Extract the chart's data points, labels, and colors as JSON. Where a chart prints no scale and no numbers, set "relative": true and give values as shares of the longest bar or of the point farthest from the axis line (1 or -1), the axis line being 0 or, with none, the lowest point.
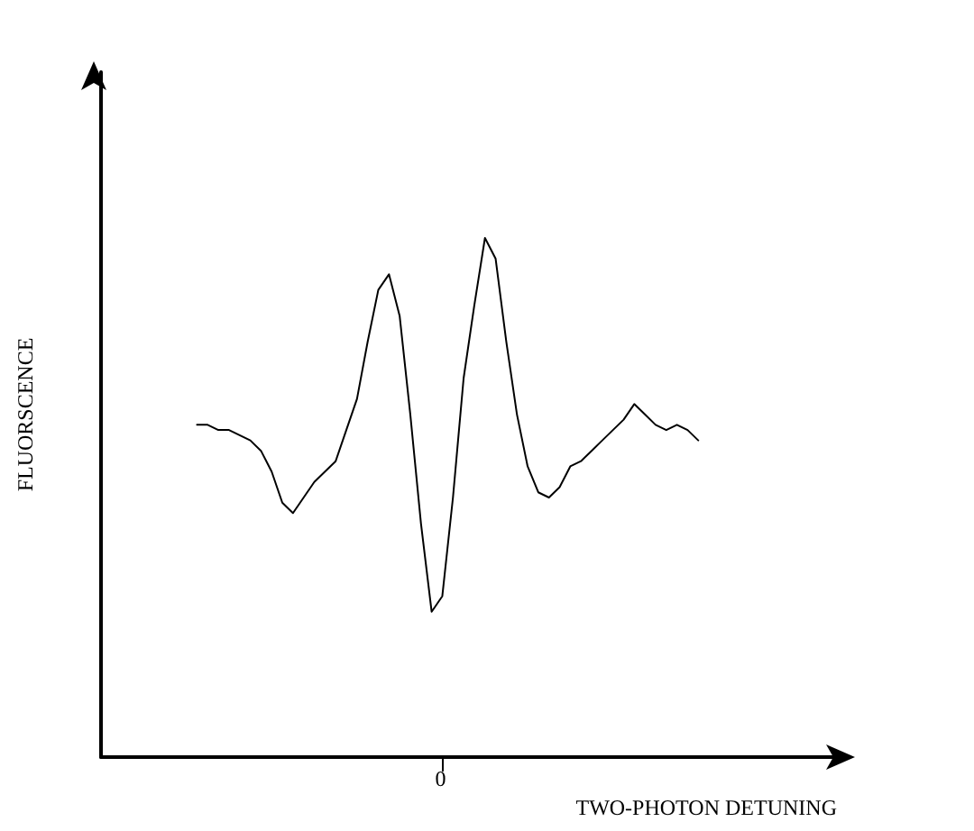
{
  "chart_data": {
    "type": "line",
    "relative": true,
    "xlabel": "TWO-PHOTON DETUNING",
    "ylabel": "FLUORSCENCE",
    "marker": "none",
    "line_style": "solid",
    "grid": false,
    "annotations": [
      "0"
    ],
    "categories": [
      null,
      null,
      null,
      null,
      null,
      null,
      null,
      null,
      null,
      null,
      null,
      null,
      null,
      null,
      null,
      null,
      null,
      null,
      null,
      null,
      null,
      null,
      null,
      null,
      null,
      null,
      null,
      null,
      null,
      null,
      null,
      null,
      null,
      null,
      null,
      null,
      null,
      null,
      null,
      null,
      null,
      null,
      null,
      null,
      null,
      null,
      null,
      null,
      null,
      null,
      null,
      null,
      null,
      null,
      null,
      null,
      null,
      null,
      null,
      null,
      null,
      null,
      null,
      null,
      null,
      null,
      null,
      null,
      null,
      null
    ],
    "series": [
      {
        "color": "#000000",
        "values": [
          null,
          null,
          null,
          null,
          null,
          null,
          null,
          null,
          null,
          0.64,
          0.64,
          0.63,
          0.63,
          0.62,
          0.61,
          0.59,
          0.55,
          0.49,
          0.47,
          0.5,
          0.53,
          0.55,
          0.57,
          0.63,
          0.69,
          0.8,
          0.9,
          0.93,
          0.85,
          0.66,
          0.45,
          0.28,
          0.31,
          0.5,
          0.73,
          0.87,
          1,
          0.96,
          0.8,
          0.66,
          0.56,
          0.51,
          0.5,
          0.52,
          0.56,
          0.57,
          0.59,
          0.61,
          0.63,
          0.65,
          0.68,
          0.66,
          0.64,
          0.63,
          0.64,
          0.63,
          0.61,
          null,
          null,
          null,
          null,
          null,
          null,
          null,
          null,
          null,
          null,
          null,
          null,
          null
        ]
      }
    ]
  }
}
